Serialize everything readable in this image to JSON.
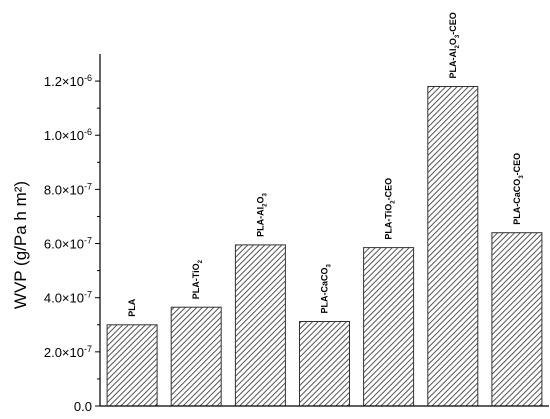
{
  "chart_data": {
    "type": "bar",
    "title": "",
    "xlabel": "",
    "ylabel": "WVP (g/Pa h m²)",
    "ylim": [
      0,
      1.3e-06
    ],
    "grid": false,
    "legend": "none",
    "bar_pattern": "diagonal-hatch",
    "bar_color": "#555555",
    "y_ticks": [
      0,
      2e-07,
      4e-07,
      6e-07,
      8e-07,
      1e-06,
      1.2e-06
    ],
    "y_tick_labels": [
      {
        "mantissa": "0.0",
        "exp": ""
      },
      {
        "mantissa": "2.0×10",
        "exp": "-7"
      },
      {
        "mantissa": "4.0×10",
        "exp": "-7"
      },
      {
        "mantissa": "6.0×10",
        "exp": "-7"
      },
      {
        "mantissa": "8.0×10",
        "exp": "-7"
      },
      {
        "mantissa": "1.0×10",
        "exp": "-6"
      },
      {
        "mantissa": "1.2×10",
        "exp": "-6"
      }
    ],
    "categories": [
      [
        {
          "t": "PLA",
          "s": ""
        }
      ],
      [
        {
          "t": "PLA-TiO",
          "s": ""
        },
        {
          "t": "2",
          "s": "sub"
        }
      ],
      [
        {
          "t": "PLA-Al",
          "s": ""
        },
        {
          "t": "2",
          "s": "sub"
        },
        {
          "t": "O",
          "s": ""
        },
        {
          "t": "3",
          "s": "sub"
        }
      ],
      [
        {
          "t": "PLA-CaCO",
          "s": ""
        },
        {
          "t": "3",
          "s": "sub"
        }
      ],
      [
        {
          "t": "PLA-TiO",
          "s": ""
        },
        {
          "t": "2",
          "s": "sub"
        },
        {
          "t": "-CEO",
          "s": ""
        }
      ],
      [
        {
          "t": "PLA-Al",
          "s": ""
        },
        {
          "t": "2",
          "s": "sub"
        },
        {
          "t": "O",
          "s": ""
        },
        {
          "t": "3",
          "s": "sub"
        },
        {
          "t": "-CEO",
          "s": ""
        }
      ],
      [
        {
          "t": "PLA-CaCO",
          "s": ""
        },
        {
          "t": "3",
          "s": "sub"
        },
        {
          "t": "-CEO",
          "s": ""
        }
      ]
    ],
    "values": [
      3e-07,
      3.65e-07,
      5.95e-07,
      3.12e-07,
      5.85e-07,
      1.18e-06,
      6.4e-07
    ]
  }
}
